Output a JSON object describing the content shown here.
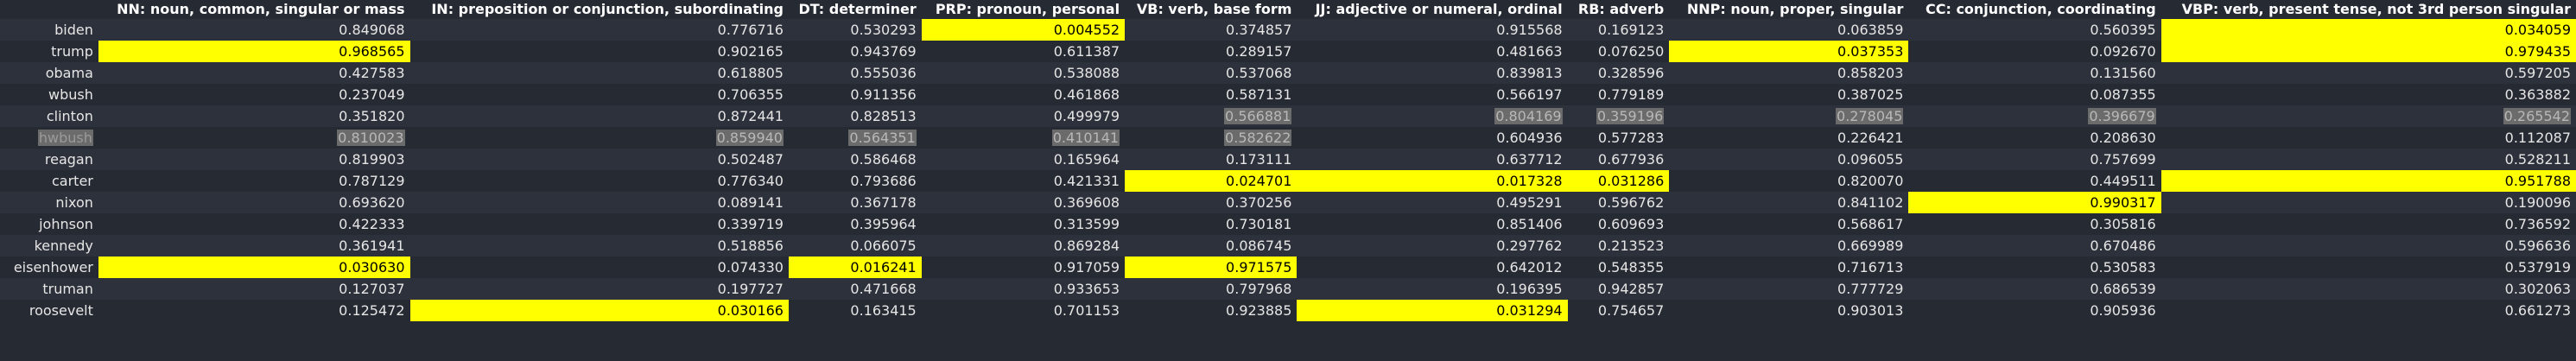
{
  "columns": [
    "",
    "NN: noun, common, singular or mass",
    "IN: preposition or conjunction, subordinating",
    "DT: determiner",
    "PRP: pronoun, personal",
    "VB: verb, base form",
    "JJ: adjective or numeral, ordinal",
    "RB: adverb",
    "NNP: noun, proper, singular",
    "CC: conjunction, coordinating",
    "VBP: verb, present tense, not 3rd person singular"
  ],
  "rows": [
    {
      "name": "biden",
      "values": [
        "0.849068",
        "0.776716",
        "0.530293",
        "0.004552",
        "0.374857",
        "0.915568",
        "0.169123",
        "0.063859",
        "0.560395",
        "0.034059"
      ]
    },
    {
      "name": "trump",
      "values": [
        "0.968565",
        "0.902165",
        "0.943769",
        "0.611387",
        "0.289157",
        "0.481663",
        "0.076250",
        "0.037353",
        "0.092670",
        "0.979435"
      ]
    },
    {
      "name": "obama",
      "values": [
        "0.427583",
        "0.618805",
        "0.555036",
        "0.538088",
        "0.537068",
        "0.839813",
        "0.328596",
        "0.858203",
        "0.131560",
        "0.597205"
      ]
    },
    {
      "name": "wbush",
      "values": [
        "0.237049",
        "0.706355",
        "0.911356",
        "0.461868",
        "0.587131",
        "0.566197",
        "0.779189",
        "0.387025",
        "0.087355",
        "0.363882"
      ]
    },
    {
      "name": "clinton",
      "values": [
        "0.351820",
        "0.872441",
        "0.828513",
        "0.499979",
        "0.566881",
        "0.804169",
        "0.359196",
        "0.278045",
        "0.396679",
        "0.265542"
      ]
    },
    {
      "name": "hwbush",
      "values": [
        "0.810023",
        "0.859940",
        "0.564351",
        "0.410141",
        "0.582622",
        "0.604936",
        "0.577283",
        "0.226421",
        "0.208630",
        "0.112087"
      ]
    },
    {
      "name": "reagan",
      "values": [
        "0.819903",
        "0.502487",
        "0.586468",
        "0.165964",
        "0.173111",
        "0.637712",
        "0.677936",
        "0.096055",
        "0.757699",
        "0.528211"
      ]
    },
    {
      "name": "carter",
      "values": [
        "0.787129",
        "0.776340",
        "0.793686",
        "0.421331",
        "0.024701",
        "0.017328",
        "0.031286",
        "0.820070",
        "0.449511",
        "0.951788"
      ]
    },
    {
      "name": "nixon",
      "values": [
        "0.693620",
        "0.089141",
        "0.367178",
        "0.369608",
        "0.370256",
        "0.495291",
        "0.596762",
        "0.841102",
        "0.990317",
        "0.190096"
      ]
    },
    {
      "name": "johnson",
      "values": [
        "0.422333",
        "0.339719",
        "0.395964",
        "0.313599",
        "0.730181",
        "0.851406",
        "0.609693",
        "0.568617",
        "0.305816",
        "0.736592"
      ]
    },
    {
      "name": "kennedy",
      "values": [
        "0.361941",
        "0.518856",
        "0.066075",
        "0.869284",
        "0.086745",
        "0.297762",
        "0.213523",
        "0.669989",
        "0.670486",
        "0.596636"
      ]
    },
    {
      "name": "eisenhower",
      "values": [
        "0.030630",
        "0.074330",
        "0.016241",
        "0.917059",
        "0.971575",
        "0.642012",
        "0.548355",
        "0.716713",
        "0.530583",
        "0.537919"
      ]
    },
    {
      "name": "truman",
      "values": [
        "0.127037",
        "0.197727",
        "0.471668",
        "0.933653",
        "0.797968",
        "0.196395",
        "0.942857",
        "0.777729",
        "0.686539",
        "0.302063"
      ]
    },
    {
      "name": "roosevelt",
      "values": [
        "0.125472",
        "0.030166",
        "0.163415",
        "0.701153",
        "0.923885",
        "0.031294",
        "0.754657",
        "0.903013",
        "0.905936",
        "0.661273"
      ]
    }
  ],
  "highlight_color": "#ffff00",
  "null_cell_color": "#6b6b6b"
}
